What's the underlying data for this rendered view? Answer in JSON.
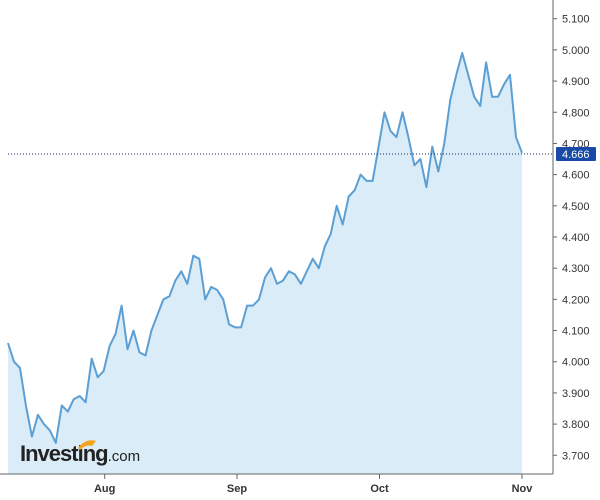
{
  "chart_data": {
    "type": "area",
    "x_tick_labels": [
      "Aug",
      "Sep",
      "Oct",
      "Nov"
    ],
    "y_ticks": [
      "3.700",
      "3.800",
      "3.900",
      "4.000",
      "4.100",
      "4.200",
      "4.300",
      "4.400",
      "4.500",
      "4.600",
      "4.700",
      "4.800",
      "4.900",
      "5.000",
      "5.100"
    ],
    "ylim": [
      3.64,
      5.16
    ],
    "last_value": 4.666,
    "last_value_label": "4.666",
    "grid": false,
    "series": [
      {
        "values": [
          4.06,
          4.0,
          3.98,
          3.86,
          3.76,
          3.83,
          3.8,
          3.78,
          3.74,
          3.86,
          3.84,
          3.88,
          3.89,
          3.87,
          4.01,
          3.95,
          3.97,
          4.05,
          4.09,
          4.18,
          4.04,
          4.1,
          4.03,
          4.02,
          4.1,
          4.15,
          4.2,
          4.21,
          4.26,
          4.29,
          4.25,
          4.34,
          4.33,
          4.2,
          4.24,
          4.23,
          4.2,
          4.12,
          4.11,
          4.11,
          4.18,
          4.18,
          4.2,
          4.27,
          4.3,
          4.25,
          4.26,
          4.29,
          4.28,
          4.25,
          4.29,
          4.33,
          4.3,
          4.37,
          4.41,
          4.5,
          4.44,
          4.53,
          4.55,
          4.6,
          4.58,
          4.58,
          4.69,
          4.8,
          4.74,
          4.72,
          4.8,
          4.72,
          4.63,
          4.65,
          4.56,
          4.69,
          4.61,
          4.7,
          4.84,
          4.92,
          4.99,
          4.92,
          4.85,
          4.82,
          4.96,
          4.85,
          4.85,
          4.89,
          4.92,
          4.72,
          4.67
        ]
      }
    ]
  },
  "brand": {
    "name": "Investing",
    "suffix": ".com"
  },
  "colors": {
    "line": "#5b9fd4",
    "fill": "#d9ecf8",
    "last_label_bg": "#1a4aa8",
    "dotted_line": "#1a2a6c",
    "axis": "#666666",
    "brand_accent": "#f2a51a"
  }
}
